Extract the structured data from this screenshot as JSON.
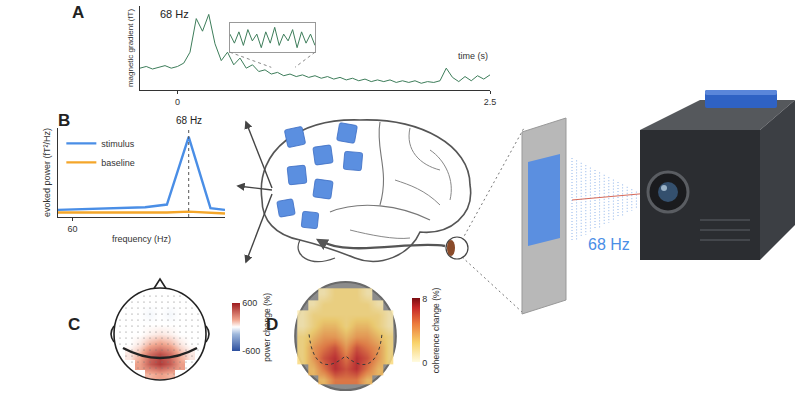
{
  "diagram": {
    "panels": [
      "A",
      "B",
      "C",
      "D"
    ],
    "stimulus_label": "68 Hz"
  },
  "chart_data": [
    {
      "type": "line",
      "title": "68 Hz",
      "x_label": "time (s)",
      "y_label": "magnetic gradient (fT)",
      "x": [
        -0.3,
        -0.25,
        -0.2,
        -0.15,
        -0.1,
        -0.05,
        0,
        0.05,
        0.1,
        0.15,
        0.2,
        0.25,
        0.3,
        0.35,
        0.4,
        0.45,
        0.5,
        0.55,
        0.6,
        0.65,
        0.7,
        0.75,
        0.8,
        0.85,
        0.9,
        0.95,
        1.0,
        1.05,
        1.1,
        1.15,
        1.2,
        1.25,
        1.3,
        1.35,
        1.4,
        1.45,
        1.5,
        1.55,
        1.6,
        1.65,
        1.7,
        1.75,
        1.8,
        1.85,
        1.9,
        1.95,
        2.0,
        2.05,
        2.1,
        2.15,
        2.2,
        2.25,
        2.3,
        2.35,
        2.4,
        2.45,
        2.5
      ],
      "values": [
        2.6,
        2.8,
        2.5,
        2.7,
        2.9,
        2.6,
        2.8,
        3.2,
        4.5,
        8.5,
        7.0,
        9.0,
        5.5,
        3.5,
        4.5,
        3.0,
        3.8,
        2.6,
        3.0,
        2.2,
        2.4,
        1.9,
        2.1,
        1.7,
        1.9,
        1.6,
        1.8,
        1.5,
        1.7,
        1.4,
        1.6,
        1.3,
        1.5,
        1.2,
        1.4,
        1.1,
        1.3,
        1.0,
        1.2,
        1.0,
        1.2,
        0.9,
        1.1,
        0.9,
        1.1,
        0.8,
        1.0,
        0.9,
        1.1,
        2.6,
        1.5,
        1.0,
        1.6,
        1.1,
        1.7,
        1.3,
        1.8
      ],
      "color": "#3d7d5a",
      "xlim": [
        -0.3,
        2.5
      ],
      "xticks": [
        0,
        2.5
      ],
      "ylim": [
        0,
        10
      ],
      "tick_labels": "x",
      "grid": false,
      "inset": {
        "x": [
          0.75,
          0.76,
          0.77,
          0.78,
          0.79,
          0.8,
          0.81,
          0.82,
          0.83,
          0.84,
          0.85,
          0.86,
          0.87,
          0.88,
          0.89,
          0.9,
          0.91,
          0.92,
          0.93,
          0.94
        ],
        "values": [
          0.6,
          0.2,
          0.7,
          0.1,
          0.8,
          0.3,
          0.6,
          0.0,
          0.7,
          0.2,
          0.9,
          0.1,
          0.6,
          0.3,
          0.8,
          0.0,
          0.7,
          0.2,
          0.6,
          0.1
        ],
        "xlim": [
          0.75,
          0.94
        ],
        "ylim": [
          -0.2,
          1.1
        ]
      }
    },
    {
      "type": "line",
      "x_label": "frequency (Hz)",
      "y_label": "evoked power (fT²/Hz)",
      "x": [
        59,
        61,
        63,
        65,
        66.5,
        68,
        69.5,
        70.5
      ],
      "series": [
        {
          "name": "stimulus",
          "color": "#4a8ee6",
          "values": [
            8,
            9,
            10,
            11,
            14,
            90,
            10,
            8
          ]
        },
        {
          "name": "baseline",
          "color": "#f4a62a",
          "values": [
            5,
            5,
            5,
            5,
            5,
            6,
            5,
            4
          ]
        }
      ],
      "xlim": [
        59,
        70.5
      ],
      "xticks": [
        60
      ],
      "ylim": [
        0,
        100
      ],
      "tick_labels": "x",
      "grid": false,
      "legend": "top-left",
      "annotations": [
        {
          "text": "68 Hz",
          "x": 68
        }
      ]
    },
    {
      "type": "heatmap",
      "colorbar_label": "power change (%)",
      "cells": [
        [
          null,
          null,
          null,
          150,
          200,
          150,
          null,
          null,
          null
        ],
        [
          null,
          null,
          200,
          400,
          500,
          400,
          200,
          null,
          null
        ],
        [
          null,
          50,
          150,
          350,
          450,
          350,
          150,
          50,
          null
        ],
        [
          null,
          0,
          50,
          150,
          200,
          150,
          50,
          0,
          null
        ],
        [
          0,
          0,
          0,
          30,
          50,
          30,
          0,
          0,
          0
        ],
        [
          null,
          0,
          0,
          0,
          0,
          0,
          0,
          0,
          null
        ],
        [
          null,
          0,
          0,
          -20,
          0,
          -20,
          0,
          0,
          null
        ],
        [
          null,
          null,
          0,
          0,
          0,
          0,
          0,
          null,
          null
        ],
        [
          null,
          null,
          null,
          0,
          0,
          0,
          null,
          null,
          null
        ]
      ],
      "color_range": [
        -600,
        600
      ],
      "color_ticks": [
        -600,
        600
      ],
      "tick_labels": false
    },
    {
      "type": "heatmap",
      "colorbar_label": "coherence change (%)",
      "cells": [
        [
          null,
          null,
          3,
          5,
          5,
          5,
          3,
          null,
          null
        ],
        [
          null,
          3,
          5,
          7,
          6,
          7,
          5,
          3,
          null
        ],
        [
          2,
          4,
          6,
          7,
          5,
          7,
          6,
          4,
          2
        ],
        [
          2,
          4,
          5,
          6,
          4,
          6,
          5,
          4,
          2
        ],
        [
          2,
          3,
          4,
          4,
          3,
          4,
          4,
          3,
          2
        ],
        [
          1,
          2,
          3,
          3,
          2,
          3,
          3,
          2,
          1
        ],
        [
          1,
          2,
          2,
          2,
          2,
          2,
          2,
          2,
          1
        ],
        [
          null,
          1,
          2,
          2,
          2,
          2,
          2,
          1,
          null
        ],
        [
          null,
          null,
          1,
          2,
          2,
          2,
          1,
          null,
          null
        ]
      ],
      "color_range": [
        0,
        8
      ],
      "color_ticks": [
        0,
        8
      ],
      "tick_labels": false
    }
  ]
}
